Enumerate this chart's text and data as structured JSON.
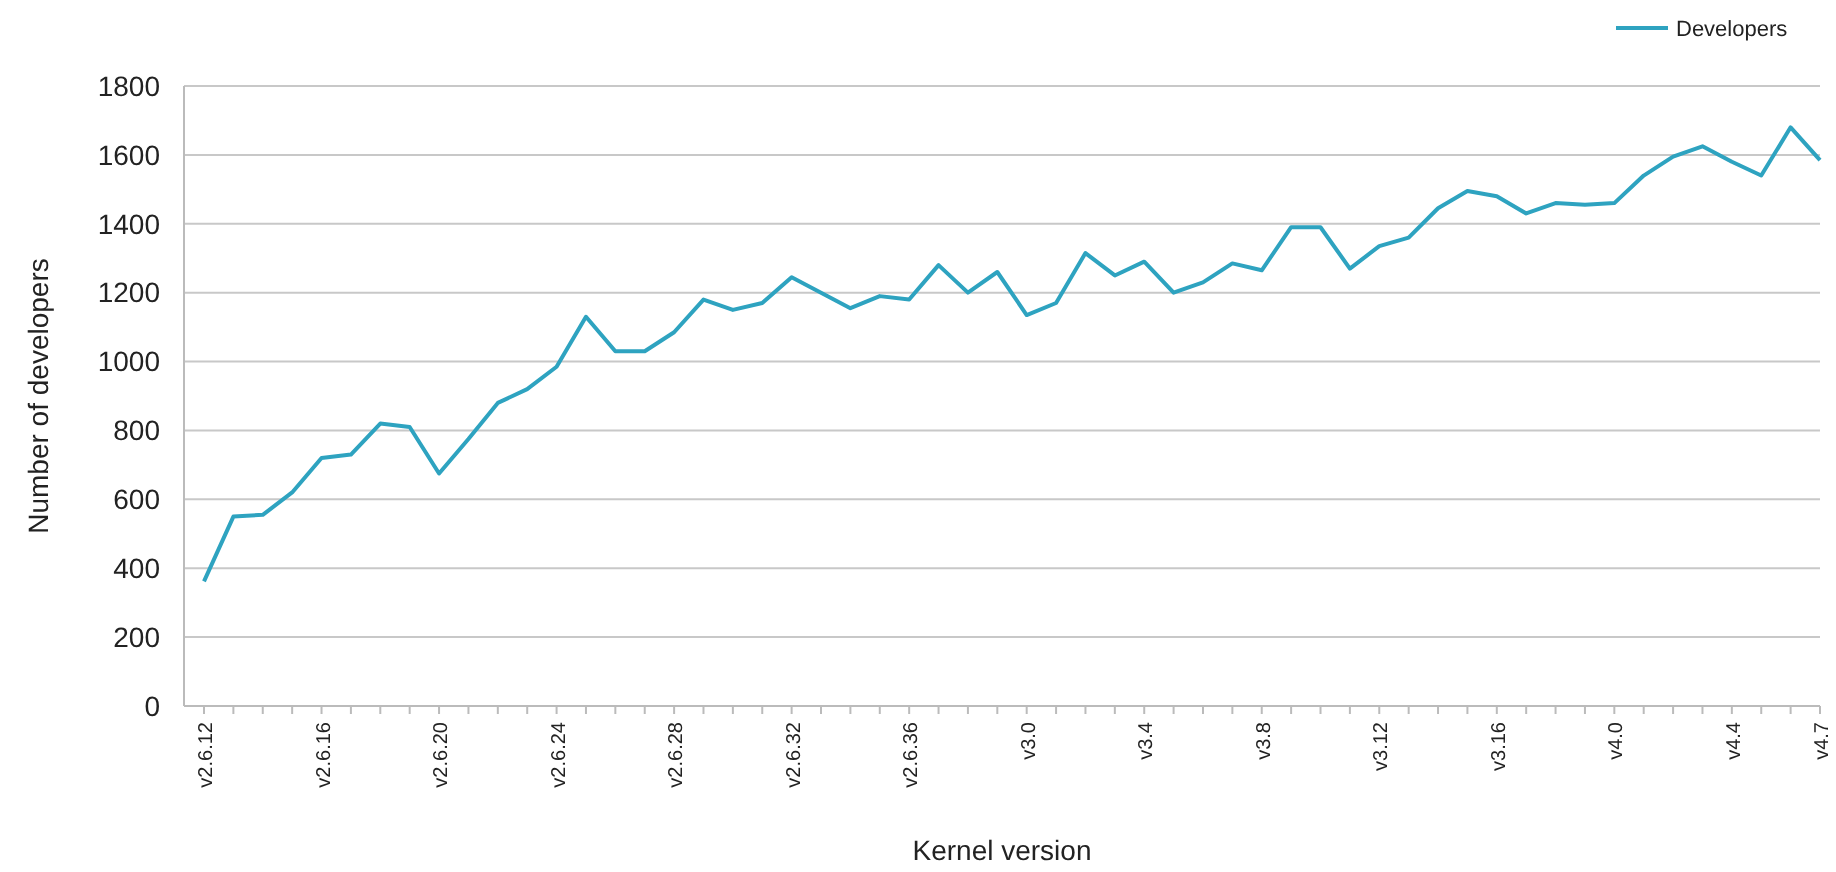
{
  "chart_data": {
    "type": "line",
    "xlabel": "Kernel version",
    "ylabel": "Number of developers",
    "categories": [
      "v2.6.12",
      null,
      null,
      null,
      "v2.6.16",
      null,
      null,
      null,
      "v2.6.20",
      null,
      null,
      null,
      "v2.6.24",
      null,
      null,
      null,
      "v2.6.28",
      null,
      null,
      null,
      "v2.6.32",
      null,
      null,
      null,
      "v2.6.36",
      null,
      null,
      null,
      "v3.0",
      null,
      null,
      null,
      "v3.4",
      null,
      null,
      null,
      "v3.8",
      null,
      null,
      null,
      "v3.12",
      null,
      null,
      null,
      "v3.16",
      null,
      null,
      null,
      "v4.0",
      null,
      null,
      null,
      "v4.4",
      null,
      null,
      "v4.7"
    ],
    "series": [
      {
        "name": "Developers",
        "color": "#2ea3c0",
        "values": [
          362,
          550,
          555,
          620,
          720,
          730,
          820,
          810,
          675,
          775,
          880,
          920,
          985,
          1130,
          1030,
          1030,
          1085,
          1180,
          1150,
          1170,
          1245,
          1200,
          1155,
          1190,
          1180,
          1280,
          1200,
          1260,
          1135,
          1170,
          1315,
          1250,
          1290,
          1200,
          1230,
          1285,
          1265,
          1390,
          1390,
          1270,
          1335,
          1360,
          1445,
          1495,
          1480,
          1430,
          1460,
          1455,
          1460,
          1540,
          1595,
          1625,
          1580,
          1540,
          1680,
          1585
        ]
      }
    ],
    "ylim": [
      0,
      1800
    ],
    "yticks": [
      0,
      200,
      400,
      600,
      800,
      1000,
      1200,
      1400,
      1600,
      1800
    ],
    "grid": "y",
    "legend": "top right",
    "marker": "none",
    "line_style": "solid"
  }
}
